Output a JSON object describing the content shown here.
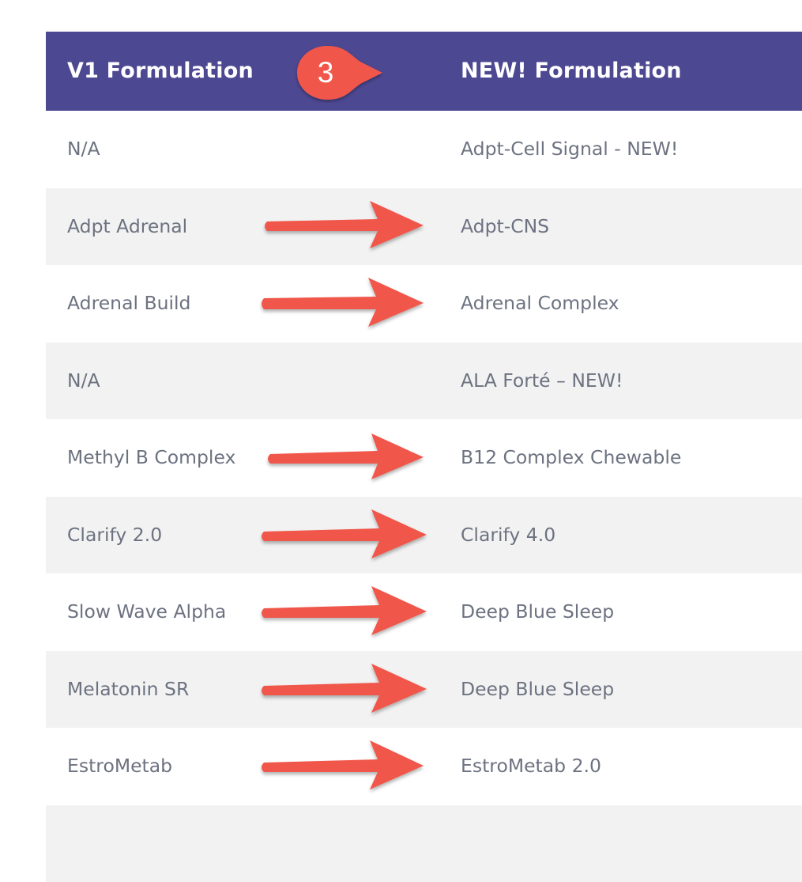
{
  "table": {
    "header": {
      "left": "V1 Formulation",
      "right": "NEW! Formulation",
      "step_number": "3",
      "step_color": "#f0564a",
      "header_bg": "#4d4892"
    },
    "arrow_color": "#f0564a",
    "rows": [
      {
        "v1": "N/A",
        "new": "Adpt-Cell Signal - NEW!",
        "arrow": false
      },
      {
        "v1": "Adpt Adrenal",
        "new": "Adpt-CNS",
        "arrow": true
      },
      {
        "v1": "Adrenal Build",
        "new": "Adrenal Complex",
        "arrow": true
      },
      {
        "v1": "N/A",
        "new": "ALA Forté – NEW!",
        "arrow": false
      },
      {
        "v1": "Methyl B Complex",
        "new": "B12 Complex Chewable",
        "arrow": true
      },
      {
        "v1": "Clarify 2.0",
        "new": "Clarify 4.0",
        "arrow": true
      },
      {
        "v1": "Slow Wave Alpha",
        "new": "Deep Blue Sleep",
        "arrow": true
      },
      {
        "v1": "Melatonin SR",
        "new": "Deep Blue Sleep",
        "arrow": true
      },
      {
        "v1": "EstroMetab",
        "new": "EstroMetab 2.0",
        "arrow": true
      },
      {
        "v1": "",
        "new": "",
        "arrow": false
      }
    ]
  }
}
